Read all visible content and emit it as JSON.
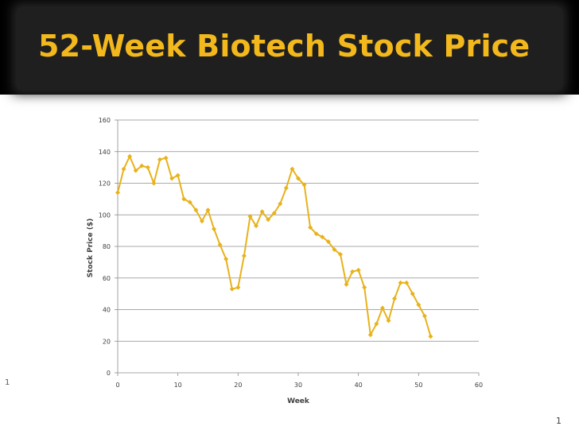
{
  "slide": {
    "title": "52-Week Biotech Stock Price",
    "side_number": "1",
    "page_number": "1"
  },
  "colors": {
    "title": "#f2b81c",
    "series": "#e8b21b",
    "grid": "#8c8c8c",
    "background": "#ffffff"
  },
  "chart_data": {
    "type": "line",
    "xlabel": "Week",
    "ylabel": "Stock Price ($)",
    "xlim": [
      0,
      60
    ],
    "ylim": [
      0,
      160
    ],
    "xticks": [
      0,
      10,
      20,
      30,
      40,
      50,
      60
    ],
    "yticks": [
      0,
      20,
      40,
      60,
      80,
      100,
      120,
      140,
      160
    ],
    "grid": "horizontal",
    "legend": "none",
    "series": [
      {
        "marker": "diamond",
        "x": [
          0,
          1,
          2,
          3,
          4,
          5,
          6,
          7,
          8,
          9,
          10,
          11,
          12,
          13,
          14,
          15,
          16,
          17,
          18,
          19,
          20,
          21,
          22,
          23,
          24,
          25,
          26,
          27,
          28,
          29,
          30,
          31,
          32,
          33,
          34,
          35,
          36,
          37,
          38,
          39,
          40,
          41,
          42,
          43,
          44,
          45,
          46,
          47,
          48,
          49,
          50,
          51,
          52
        ],
        "y": [
          114,
          129,
          137,
          128,
          131,
          130,
          120,
          135,
          136,
          123,
          125,
          110,
          108,
          103,
          96,
          103,
          91,
          81,
          72,
          53,
          54,
          74,
          99,
          93,
          102,
          97,
          101,
          107,
          117,
          129,
          123,
          119,
          92,
          88,
          86,
          83,
          78,
          75,
          56,
          64,
          65,
          54,
          24,
          31,
          41,
          33,
          47,
          57,
          57,
          50,
          43,
          36,
          23
        ]
      }
    ]
  }
}
